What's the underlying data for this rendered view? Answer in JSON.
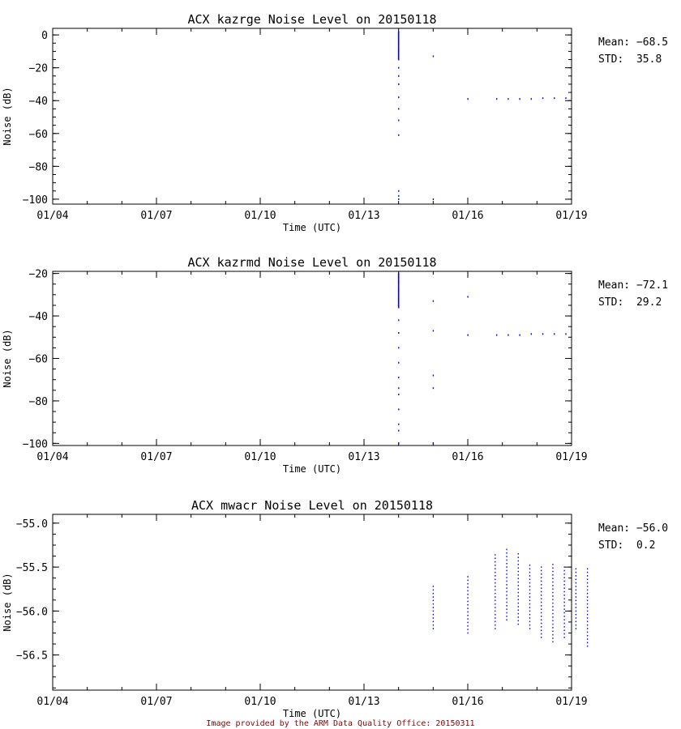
{
  "footer": "Image provided by the ARM Data Quality Office: 20150311",
  "colors": {
    "points": "#0000ff",
    "footer": "#8b0000",
    "axes": "#000000"
  },
  "chart_data": [
    {
      "type": "scatter",
      "title": "ACX kazrge Noise Level on 20150118",
      "xlabel": "Time (UTC)",
      "ylabel": "Noise (dB)",
      "x_ticks": [
        "01/04",
        "01/07",
        "01/10",
        "01/13",
        "01/16",
        "01/19"
      ],
      "xlim": [
        "2015-01-04",
        "2015-01-19"
      ],
      "ylim": [
        -103,
        4
      ],
      "y_ticks": [
        0,
        -20,
        -40,
        -60,
        -80,
        -100
      ],
      "stats": {
        "mean_label": "Mean:",
        "mean": "-68.5",
        "std_label": "STD:",
        "std": "35.8"
      },
      "points": [
        [
          "2015-01-14 00:00",
          2
        ],
        [
          "2015-01-14 00:00",
          -5
        ],
        [
          "2015-01-14 00:00",
          -10
        ],
        [
          "2015-01-14 00:00",
          -15
        ],
        [
          "2015-01-14 00:00",
          -20
        ],
        [
          "2015-01-14 00:00",
          -25
        ],
        [
          "2015-01-14 00:00",
          -30
        ],
        [
          "2015-01-14 00:00",
          -38
        ],
        [
          "2015-01-14 00:00",
          -45
        ],
        [
          "2015-01-14 00:00",
          -52
        ],
        [
          "2015-01-14 00:00",
          -61
        ],
        [
          "2015-01-14 00:00",
          -95
        ],
        [
          "2015-01-14 00:00",
          -98
        ],
        [
          "2015-01-14 00:00",
          -100
        ],
        [
          "2015-01-15 00:00",
          -13
        ],
        [
          "2015-01-15 00:00",
          -100
        ],
        [
          "2015-01-16 00:00",
          -39
        ],
        [
          "2015-01-16 20:00",
          -39
        ],
        [
          "2015-01-17 04:00",
          -39
        ],
        [
          "2015-01-17 12:00",
          -39
        ],
        [
          "2015-01-17 20:00",
          -39
        ],
        [
          "2015-01-18 04:00",
          -38.5
        ],
        [
          "2015-01-18 12:00",
          -38.5
        ],
        [
          "2015-01-18 20:00",
          -38.5
        ]
      ]
    },
    {
      "type": "scatter",
      "title": "ACX kazrmd Noise Level on 20150118",
      "xlabel": "Time (UTC)",
      "ylabel": "Noise (dB)",
      "x_ticks": [
        "01/04",
        "01/07",
        "01/10",
        "01/13",
        "01/16",
        "01/19"
      ],
      "xlim": [
        "2015-01-04",
        "2015-01-19"
      ],
      "ylim": [
        -101,
        -19
      ],
      "y_ticks": [
        -20,
        -40,
        -60,
        -80,
        -100
      ],
      "stats": {
        "mean_label": "Mean:",
        "mean": "-72.1",
        "std_label": "STD:",
        "std": "29.2"
      },
      "points": [
        [
          "2015-01-14 00:00",
          -20
        ],
        [
          "2015-01-14 00:00",
          -24
        ],
        [
          "2015-01-14 00:00",
          -28
        ],
        [
          "2015-01-14 00:00",
          -32
        ],
        [
          "2015-01-14 00:00",
          -36
        ],
        [
          "2015-01-14 00:00",
          -42
        ],
        [
          "2015-01-14 00:00",
          -48
        ],
        [
          "2015-01-14 00:00",
          -55
        ],
        [
          "2015-01-14 00:00",
          -62
        ],
        [
          "2015-01-14 00:00",
          -69
        ],
        [
          "2015-01-14 00:00",
          -74
        ],
        [
          "2015-01-14 00:00",
          -77
        ],
        [
          "2015-01-14 00:00",
          -84
        ],
        [
          "2015-01-14 00:00",
          -91
        ],
        [
          "2015-01-14 00:00",
          -94
        ],
        [
          "2015-01-14 00:00",
          -100
        ],
        [
          "2015-01-15 00:00",
          -33
        ],
        [
          "2015-01-15 00:00",
          -47
        ],
        [
          "2015-01-15 00:00",
          -68
        ],
        [
          "2015-01-15 00:00",
          -74
        ],
        [
          "2015-01-15 00:00",
          -100
        ],
        [
          "2015-01-16 00:00",
          -31
        ],
        [
          "2015-01-16 00:00",
          -49
        ],
        [
          "2015-01-16 20:00",
          -49
        ],
        [
          "2015-01-17 04:00",
          -49
        ],
        [
          "2015-01-17 12:00",
          -49
        ],
        [
          "2015-01-17 20:00",
          -48.5
        ],
        [
          "2015-01-18 04:00",
          -48.5
        ],
        [
          "2015-01-18 12:00",
          -48.5
        ],
        [
          "2015-01-18 20:00",
          -48.5
        ]
      ]
    },
    {
      "type": "scatter",
      "title": "ACX mwacr Noise Level on 20150118",
      "xlabel": "Time (UTC)",
      "ylabel": "Noise (dB)",
      "x_ticks": [
        "01/04",
        "01/07",
        "01/10",
        "01/13",
        "01/16",
        "01/19"
      ],
      "xlim": [
        "2015-01-04",
        "2015-01-19"
      ],
      "ylim": [
        -56.9,
        -54.9
      ],
      "y_ticks": [
        "-55.0",
        "-55.5",
        "-56.0",
        "-56.5"
      ],
      "stats": {
        "mean_label": "Mean:",
        "mean": "-56.0",
        "std_label": "STD:",
        "std": "0.2"
      },
      "point_columns": [
        {
          "t": "2015-01-15 00:00",
          "lo": -56.2,
          "hi": -55.7
        },
        {
          "t": "2015-01-16 00:00",
          "lo": -56.25,
          "hi": -55.6
        },
        {
          "t": "2015-01-16 19:00",
          "lo": -56.2,
          "hi": -55.35
        },
        {
          "t": "2015-01-17 03:00",
          "lo": -56.1,
          "hi": -55.3
        },
        {
          "t": "2015-01-17 11:00",
          "lo": -56.15,
          "hi": -55.35
        },
        {
          "t": "2015-01-17 19:00",
          "lo": -56.2,
          "hi": -55.45
        },
        {
          "t": "2015-01-18 03:00",
          "lo": -56.3,
          "hi": -55.5
        },
        {
          "t": "2015-01-18 11:00",
          "lo": -56.35,
          "hi": -55.45
        },
        {
          "t": "2015-01-18 19:00",
          "lo": -56.3,
          "hi": -55.5
        },
        {
          "t": "2015-01-19 03:00",
          "lo": -56.2,
          "hi": -55.5
        },
        {
          "t": "2015-01-19 11:00",
          "lo": -56.4,
          "hi": -55.5
        }
      ]
    }
  ]
}
